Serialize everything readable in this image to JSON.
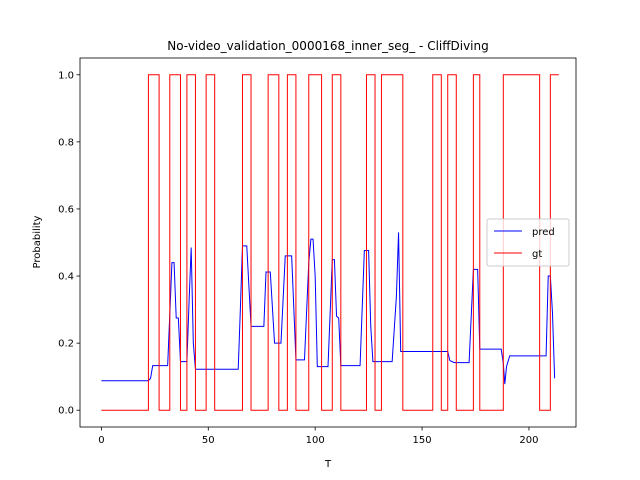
{
  "chart_data": {
    "type": "line",
    "title": "No-video_validation_0000168_inner_seg_ - CliffDiving",
    "xlabel": "T",
    "ylabel": "Probability",
    "xlim": [
      -10,
      222
    ],
    "ylim": [
      -0.05,
      1.05
    ],
    "xticks": [
      0,
      50,
      100,
      150,
      200
    ],
    "yticks": [
      0.0,
      0.2,
      0.4,
      0.6,
      0.8,
      1.0
    ],
    "xtick_labels": [
      "0",
      "50",
      "100",
      "150",
      "200"
    ],
    "ytick_labels": [
      "0.0",
      "0.2",
      "0.4",
      "0.6",
      "0.8",
      "1.0"
    ],
    "legend_position": "center right",
    "series": [
      {
        "name": "pred",
        "color": "#0000ff",
        "points": [
          [
            0,
            0.088
          ],
          [
            22,
            0.088
          ],
          [
            23,
            0.095
          ],
          [
            24,
            0.133
          ],
          [
            31,
            0.133
          ],
          [
            33,
            0.44
          ],
          [
            34,
            0.44
          ],
          [
            35,
            0.275
          ],
          [
            36,
            0.275
          ],
          [
            37,
            0.145
          ],
          [
            40,
            0.145
          ],
          [
            41,
            0.32
          ],
          [
            42,
            0.485
          ],
          [
            43,
            0.2
          ],
          [
            44,
            0.122
          ],
          [
            64,
            0.122
          ],
          [
            65,
            0.3
          ],
          [
            66,
            0.49
          ],
          [
            68,
            0.49
          ],
          [
            70,
            0.25
          ],
          [
            76,
            0.25
          ],
          [
            77,
            0.412
          ],
          [
            79,
            0.412
          ],
          [
            81,
            0.2
          ],
          [
            84,
            0.2
          ],
          [
            86,
            0.46
          ],
          [
            89,
            0.46
          ],
          [
            91,
            0.15
          ],
          [
            95,
            0.15
          ],
          [
            97,
            0.44
          ],
          [
            98,
            0.51
          ],
          [
            99,
            0.51
          ],
          [
            100,
            0.4
          ],
          [
            101,
            0.13
          ],
          [
            106,
            0.13
          ],
          [
            108,
            0.449
          ],
          [
            109,
            0.449
          ],
          [
            110,
            0.28
          ],
          [
            111,
            0.275
          ],
          [
            112,
            0.133
          ],
          [
            121,
            0.133
          ],
          [
            123,
            0.476
          ],
          [
            125,
            0.476
          ],
          [
            126,
            0.25
          ],
          [
            127,
            0.145
          ],
          [
            136,
            0.145
          ],
          [
            138,
            0.34
          ],
          [
            139,
            0.53
          ],
          [
            140,
            0.175
          ],
          [
            162,
            0.175
          ],
          [
            163,
            0.148
          ],
          [
            165,
            0.142
          ],
          [
            172,
            0.142
          ],
          [
            174,
            0.42
          ],
          [
            176,
            0.42
          ],
          [
            177,
            0.182
          ],
          [
            187,
            0.182
          ],
          [
            188,
            0.14
          ],
          [
            188.7,
            0.078
          ],
          [
            189.5,
            0.13
          ],
          [
            191,
            0.162
          ],
          [
            208,
            0.162
          ],
          [
            209,
            0.4
          ],
          [
            210,
            0.4
          ],
          [
            211,
            0.29
          ],
          [
            212,
            0.095
          ]
        ]
      },
      {
        "name": "gt",
        "color": "#ff0000",
        "points": [
          [
            0,
            0
          ],
          [
            22,
            0
          ],
          [
            22,
            1
          ],
          [
            27,
            1
          ],
          [
            27,
            0
          ],
          [
            32,
            0
          ],
          [
            32,
            1
          ],
          [
            37,
            1
          ],
          [
            37,
            0
          ],
          [
            40,
            0
          ],
          [
            40,
            1
          ],
          [
            44,
            1
          ],
          [
            44,
            0
          ],
          [
            49,
            0
          ],
          [
            49,
            1
          ],
          [
            53,
            1
          ],
          [
            53,
            0
          ],
          [
            66,
            0
          ],
          [
            66,
            1
          ],
          [
            70,
            1
          ],
          [
            70,
            0
          ],
          [
            78,
            0
          ],
          [
            78,
            1
          ],
          [
            83,
            1
          ],
          [
            83,
            0
          ],
          [
            87,
            0
          ],
          [
            87,
            1
          ],
          [
            91,
            1
          ],
          [
            91,
            0
          ],
          [
            97,
            0
          ],
          [
            97,
            1
          ],
          [
            103,
            1
          ],
          [
            103,
            0
          ],
          [
            108,
            0
          ],
          [
            108,
            1
          ],
          [
            112,
            1
          ],
          [
            112,
            0
          ],
          [
            124,
            0
          ],
          [
            124,
            1
          ],
          [
            128,
            1
          ],
          [
            128,
            0
          ],
          [
            131,
            0
          ],
          [
            131,
            1
          ],
          [
            141,
            1
          ],
          [
            141,
            0
          ],
          [
            155,
            0
          ],
          [
            155,
            1
          ],
          [
            159,
            1
          ],
          [
            159,
            0
          ],
          [
            162,
            0
          ],
          [
            162,
            1
          ],
          [
            166,
            1
          ],
          [
            166,
            0
          ],
          [
            174,
            0
          ],
          [
            174,
            1
          ],
          [
            177,
            1
          ],
          [
            177,
            0
          ],
          [
            188,
            0
          ],
          [
            188,
            1
          ],
          [
            205,
            1
          ],
          [
            205,
            0
          ],
          [
            210,
            0
          ],
          [
            210,
            1
          ],
          [
            214,
            1
          ]
        ]
      }
    ]
  }
}
